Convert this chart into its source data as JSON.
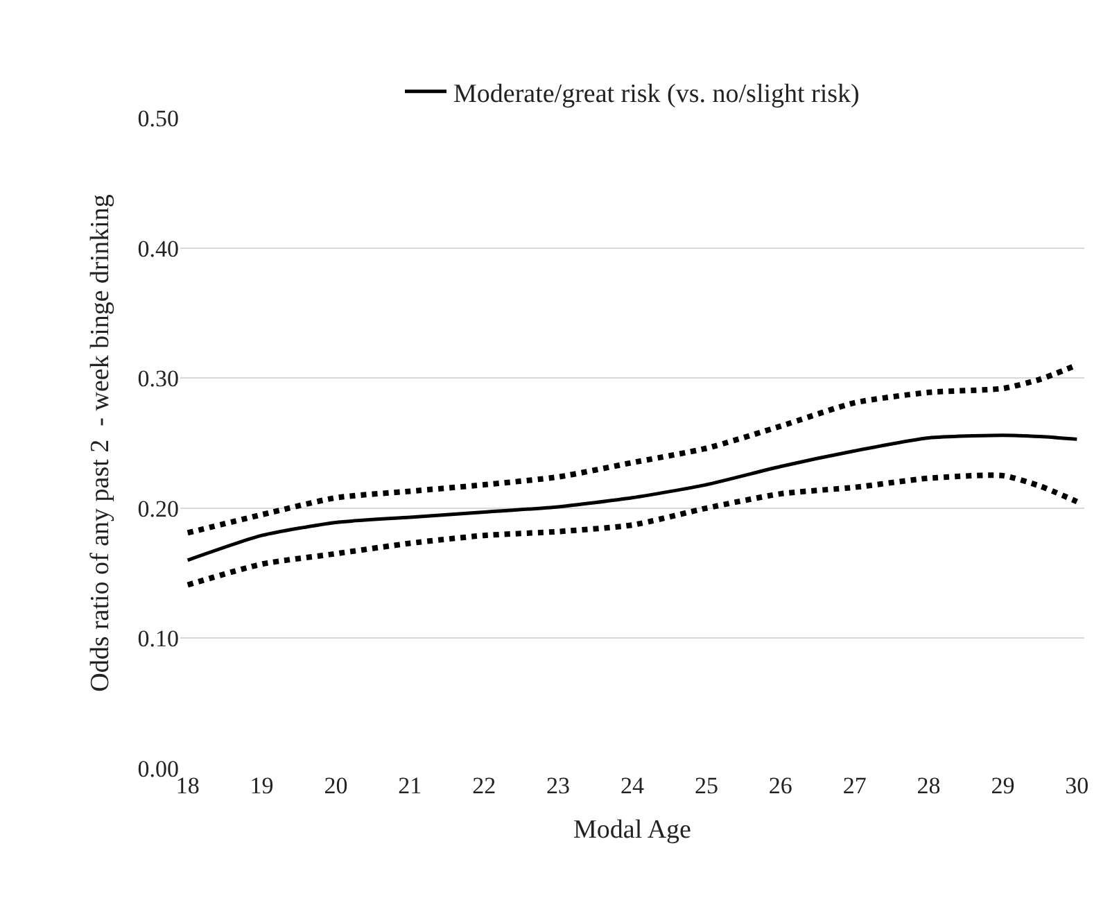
{
  "chart_data": {
    "type": "line",
    "xlabel": "Modal Age",
    "ylabel": "Odds ratio of any past 2  - week binge drinking",
    "x": [
      18,
      19,
      20,
      21,
      22,
      23,
      24,
      25,
      26,
      27,
      28,
      29,
      29.5,
      30
    ],
    "series": [
      {
        "name": "Moderate/great risk (vs. no/slight risk)",
        "color": "#000000",
        "line_style": "solid",
        "values": [
          0.16,
          0.179,
          0.189,
          0.193,
          0.197,
          0.201,
          0.208,
          0.218,
          0.232,
          0.244,
          0.254,
          0.256,
          0.255,
          0.253
        ]
      },
      {
        "color": "#000000",
        "line_style": "dotted",
        "values": [
          0.181,
          0.195,
          0.208,
          0.213,
          0.218,
          0.224,
          0.235,
          0.246,
          0.263,
          0.281,
          0.289,
          0.292,
          0.299,
          0.31
        ]
      },
      {
        "color": "#000000",
        "line_style": "dotted",
        "values": [
          0.141,
          0.157,
          0.165,
          0.173,
          0.179,
          0.182,
          0.187,
          0.2,
          0.211,
          0.216,
          0.223,
          0.225,
          0.217,
          0.205
        ]
      }
    ],
    "xlim": [
      17.9,
      30.1
    ],
    "xticks": [
      18,
      19,
      20,
      21,
      22,
      23,
      24,
      25,
      26,
      27,
      28,
      29,
      30
    ],
    "ylim": [
      0,
      0.5
    ],
    "yticks": [
      {
        "value": 0,
        "label": "0.00"
      },
      {
        "value": 0.1,
        "label": "0.10"
      },
      {
        "value": 0.2,
        "label": "0.20"
      },
      {
        "value": 0.3,
        "label": "0.30"
      },
      {
        "value": 0.4,
        "label": "0.40"
      },
      {
        "value": 0.5,
        "label": "0.50"
      }
    ],
    "grid": "y",
    "legend": "top",
    "marker": "none"
  }
}
